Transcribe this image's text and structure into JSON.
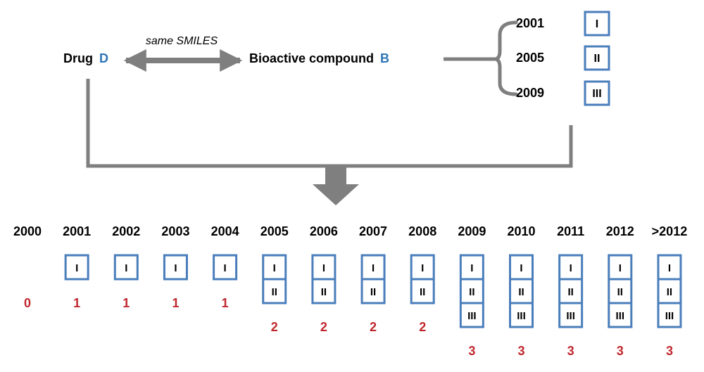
{
  "colors": {
    "box_stroke": "#4a7ebb",
    "connector": "#7f7f7f",
    "count_text": "#c0272d",
    "highlight_letter": "#2e75b6",
    "text": "#000000"
  },
  "top": {
    "drug_label": "Drug",
    "drug_letter": "D",
    "arrow_caption": "same SMILES",
    "compound_label": "Bioactive compound",
    "compound_letter": "B",
    "versions": [
      {
        "year": "2001",
        "numeral": "I"
      },
      {
        "year": "2005",
        "numeral": "II"
      },
      {
        "year": "2009",
        "numeral": "III"
      }
    ]
  },
  "timeline": {
    "columns": [
      {
        "year": "2000",
        "stack": [],
        "count": "0"
      },
      {
        "year": "2001",
        "stack": [
          "I"
        ],
        "count": "1"
      },
      {
        "year": "2002",
        "stack": [
          "I"
        ],
        "count": "1"
      },
      {
        "year": "2003",
        "stack": [
          "I"
        ],
        "count": "1"
      },
      {
        "year": "2004",
        "stack": [
          "I"
        ],
        "count": "1"
      },
      {
        "year": "2005",
        "stack": [
          "I",
          "II"
        ],
        "count": "2"
      },
      {
        "year": "2006",
        "stack": [
          "I",
          "II"
        ],
        "count": "2"
      },
      {
        "year": "2007",
        "stack": [
          "I",
          "II"
        ],
        "count": "2"
      },
      {
        "year": "2008",
        "stack": [
          "I",
          "II"
        ],
        "count": "2"
      },
      {
        "year": "2009",
        "stack": [
          "I",
          "II",
          "III"
        ],
        "count": "3"
      },
      {
        "year": "2010",
        "stack": [
          "I",
          "II",
          "III"
        ],
        "count": "3"
      },
      {
        "year": "2011",
        "stack": [
          "I",
          "II",
          "III"
        ],
        "count": "3"
      },
      {
        "year": "2012",
        "stack": [
          "I",
          "II",
          "III"
        ],
        "count": "3"
      },
      {
        "year": ">2012",
        "stack": [
          "I",
          "II",
          "III"
        ],
        "count": "3"
      }
    ]
  }
}
